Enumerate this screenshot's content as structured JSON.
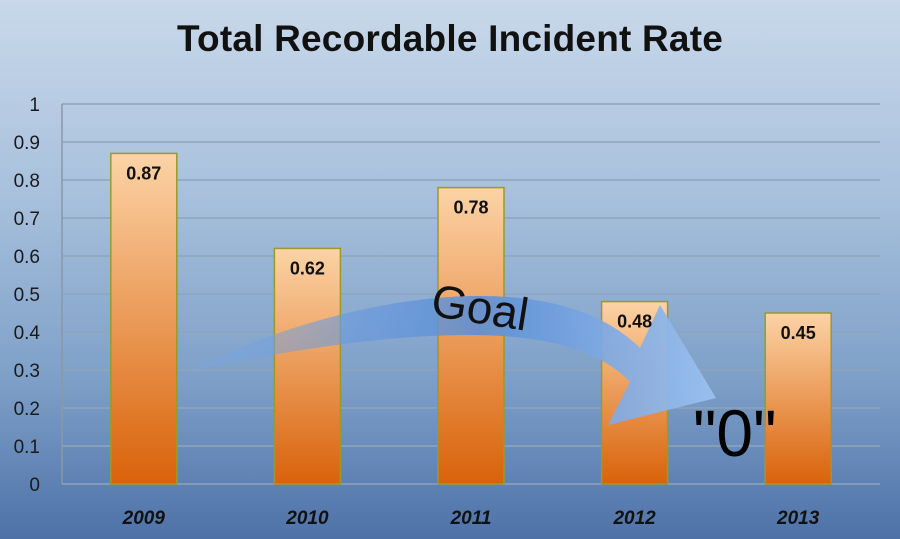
{
  "chart_data": {
    "type": "bar",
    "title": "Total Recordable Incident Rate",
    "xlabel": "",
    "ylabel": "",
    "categories": [
      "2009",
      "2010",
      "2011",
      "2012",
      "2013"
    ],
    "values": [
      0.87,
      0.62,
      0.78,
      0.48,
      0.45
    ],
    "data_labels": [
      "0.87",
      "0.62",
      "0.78",
      "0.48",
      "0.45"
    ],
    "ylim": [
      0,
      1
    ],
    "yticks": [
      "0",
      "0.1",
      "0.2",
      "0.3",
      "0.4",
      "0.5",
      "0.6",
      "0.7",
      "0.8",
      "0.9",
      "1"
    ],
    "grid": true,
    "legend": "none",
    "annotations": {
      "arrow_text": "Goal",
      "target_text": "\"0\""
    },
    "colors": {
      "bar_top": "#fcd3a6",
      "bar_bottom": "#d9620a",
      "bar_border": "#9a9a2a",
      "arrow": "#5b8fd6",
      "grid": "#8fa4bd"
    }
  }
}
